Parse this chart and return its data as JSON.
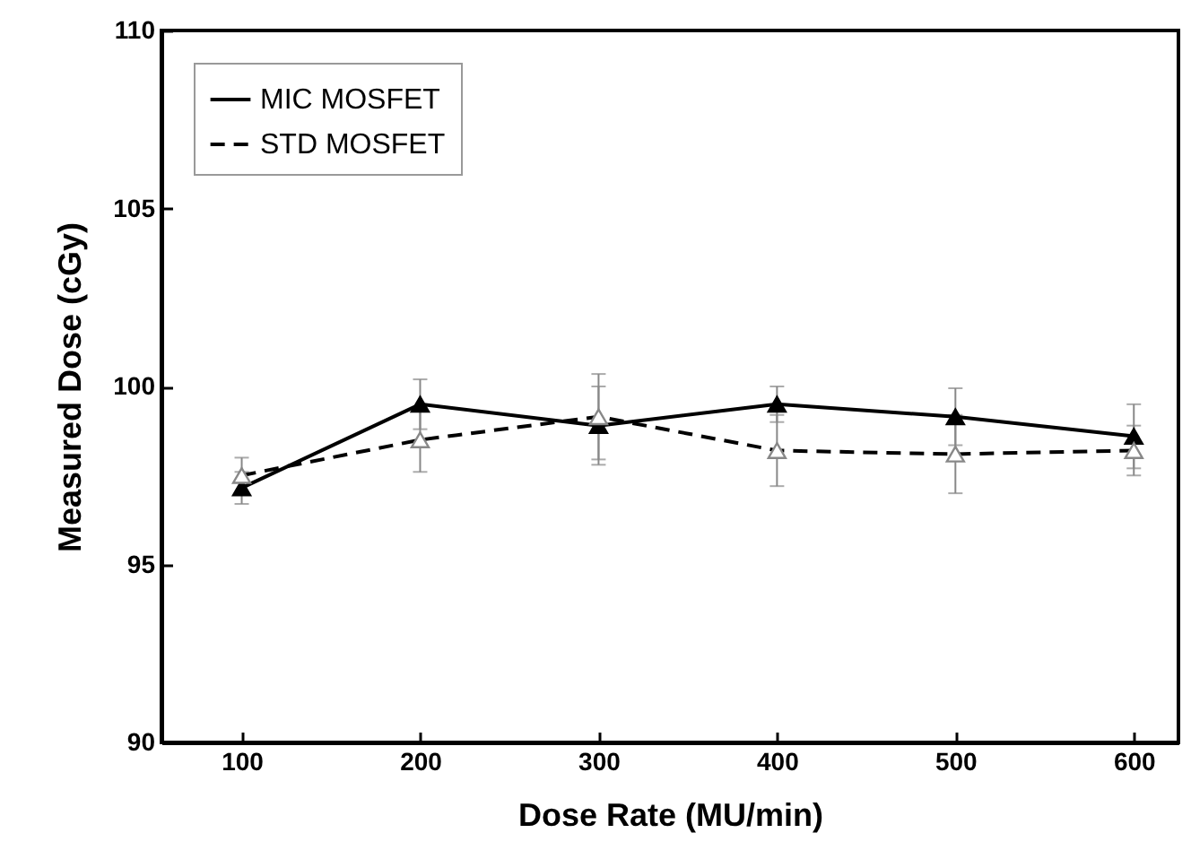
{
  "chart_data": {
    "type": "line",
    "xlabel": "Dose Rate (MU/min)",
    "ylabel": "Measured Dose (cGy)",
    "x": [
      100,
      200,
      300,
      400,
      500,
      600
    ],
    "series": [
      {
        "name": "MIC MOSFET",
        "color": "#000000",
        "line_style": "solid",
        "values": [
          97.15,
          99.5,
          98.9,
          99.5,
          99.15,
          98.6
        ],
        "errors": [
          0.45,
          0.7,
          1.1,
          0.5,
          0.8,
          0.9
        ]
      },
      {
        "name": "STD MOSFET",
        "color": "#000000",
        "line_style": "dashed",
        "values": [
          97.5,
          98.5,
          99.15,
          98.2,
          98.1,
          98.2
        ],
        "errors": [
          0.5,
          0.9,
          1.2,
          1.0,
          1.1,
          0.7
        ]
      }
    ],
    "xlim": [
      55,
      625
    ],
    "xticks": [
      100,
      200,
      300,
      400,
      500,
      600
    ],
    "ylim": [
      90,
      110
    ],
    "yticks": [
      90,
      95,
      100,
      105,
      110
    ],
    "marker": "triangle",
    "grid": false,
    "legend": "top left"
  }
}
